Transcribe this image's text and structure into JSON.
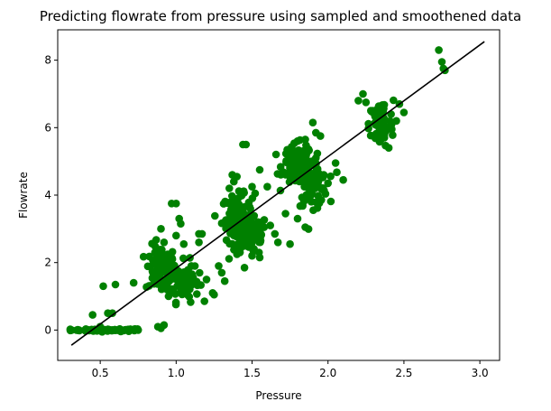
{
  "chart_data": {
    "type": "scatter",
    "title": "Predicting flowrate from pressure using sampled and smoothened data",
    "xlabel": "Pressure",
    "ylabel": "Flowrate",
    "xlim": [
      0.22,
      3.13
    ],
    "ylim": [
      -0.9,
      8.9
    ],
    "xticks": [
      0.5,
      1.0,
      1.5,
      2.0,
      2.5,
      3.0
    ],
    "xtick_labels": [
      "0.5",
      "1.0",
      "1.5",
      "2.0",
      "2.5",
      "3.0"
    ],
    "yticks": [
      0,
      2,
      4,
      6,
      8
    ],
    "ytick_labels": [
      "0",
      "2",
      "4",
      "6",
      "8"
    ],
    "grid": false,
    "legend": "none",
    "colors": {
      "points": "#008000",
      "fit_line": "#000000"
    },
    "clusters": [
      {
        "center": [
          0.55,
          0.0
        ],
        "spread": [
          0.12,
          0.02
        ],
        "n": 60
      },
      {
        "center": [
          0.9,
          1.8
        ],
        "spread": [
          0.05,
          0.35
        ],
        "n": 90
      },
      {
        "center": [
          1.05,
          1.45
        ],
        "spread": [
          0.05,
          0.3
        ],
        "n": 70
      },
      {
        "center": [
          1.4,
          3.3
        ],
        "spread": [
          0.05,
          0.35
        ],
        "n": 100
      },
      {
        "center": [
          1.5,
          2.8
        ],
        "spread": [
          0.05,
          0.3
        ],
        "n": 80
      },
      {
        "center": [
          1.8,
          4.9
        ],
        "spread": [
          0.05,
          0.3
        ],
        "n": 90
      },
      {
        "center": [
          1.9,
          4.4
        ],
        "spread": [
          0.05,
          0.35
        ],
        "n": 80
      },
      {
        "center": [
          2.35,
          6.1
        ],
        "spread": [
          0.04,
          0.35
        ],
        "n": 70
      }
    ],
    "points": [
      [
        0.36,
        0.0
      ],
      [
        0.42,
        0.0
      ],
      [
        0.45,
        0.45
      ],
      [
        0.5,
        0.1
      ],
      [
        0.52,
        1.3
      ],
      [
        0.55,
        0.5
      ],
      [
        0.58,
        0.5
      ],
      [
        0.6,
        1.35
      ],
      [
        0.66,
        0.0
      ],
      [
        0.7,
        0.0
      ],
      [
        0.72,
        1.4
      ],
      [
        0.75,
        0.0
      ],
      [
        0.88,
        0.1
      ],
      [
        0.9,
        0.05
      ],
      [
        0.92,
        0.15
      ],
      [
        0.86,
        2.3
      ],
      [
        0.9,
        3.0
      ],
      [
        0.92,
        2.6
      ],
      [
        0.95,
        2.2
      ],
      [
        0.97,
        3.75
      ],
      [
        1.0,
        3.75
      ],
      [
        1.02,
        3.3
      ],
      [
        1.03,
        3.15
      ],
      [
        1.0,
        2.8
      ],
      [
        1.05,
        2.55
      ],
      [
        0.95,
        1.0
      ],
      [
        1.1,
        1.9
      ],
      [
        1.15,
        2.6
      ],
      [
        1.2,
        1.5
      ],
      [
        1.15,
        2.85
      ],
      [
        1.17,
        2.85
      ],
      [
        1.24,
        1.1
      ],
      [
        1.25,
        1.05
      ],
      [
        1.28,
        1.9
      ],
      [
        1.3,
        1.7
      ],
      [
        1.32,
        1.45
      ],
      [
        1.35,
        4.2
      ],
      [
        1.37,
        4.6
      ],
      [
        1.4,
        4.55
      ],
      [
        1.38,
        4.4
      ],
      [
        1.45,
        3.65
      ],
      [
        1.44,
        5.5
      ],
      [
        1.46,
        5.5
      ],
      [
        1.5,
        4.25
      ],
      [
        1.52,
        4.05
      ],
      [
        1.55,
        4.75
      ],
      [
        1.6,
        4.25
      ],
      [
        1.62,
        3.1
      ],
      [
        1.65,
        2.85
      ],
      [
        1.67,
        2.6
      ],
      [
        1.55,
        2.15
      ],
      [
        1.5,
        2.2
      ],
      [
        1.45,
        1.85
      ],
      [
        1.42,
        2.3
      ],
      [
        1.72,
        3.45
      ],
      [
        1.75,
        2.55
      ],
      [
        1.8,
        3.3
      ],
      [
        1.8,
        5.6
      ],
      [
        1.85,
        5.65
      ],
      [
        1.9,
        6.15
      ],
      [
        1.92,
        5.85
      ],
      [
        1.95,
        5.75
      ],
      [
        1.85,
        3.05
      ],
      [
        1.95,
        3.85
      ],
      [
        2.0,
        4.35
      ],
      [
        2.05,
        4.95
      ],
      [
        2.1,
        4.45
      ],
      [
        2.2,
        6.8
      ],
      [
        2.23,
        7.0
      ],
      [
        2.25,
        6.75
      ],
      [
        2.4,
        5.4
      ],
      [
        2.45,
        6.2
      ],
      [
        2.47,
        6.7
      ],
      [
        2.5,
        6.45
      ],
      [
        2.73,
        8.3
      ],
      [
        2.75,
        7.95
      ],
      [
        2.76,
        7.75
      ],
      [
        2.77,
        7.7
      ]
    ],
    "fit_line": {
      "x": [
        0.31,
        3.03
      ],
      "y": [
        -0.45,
        8.55
      ]
    }
  }
}
